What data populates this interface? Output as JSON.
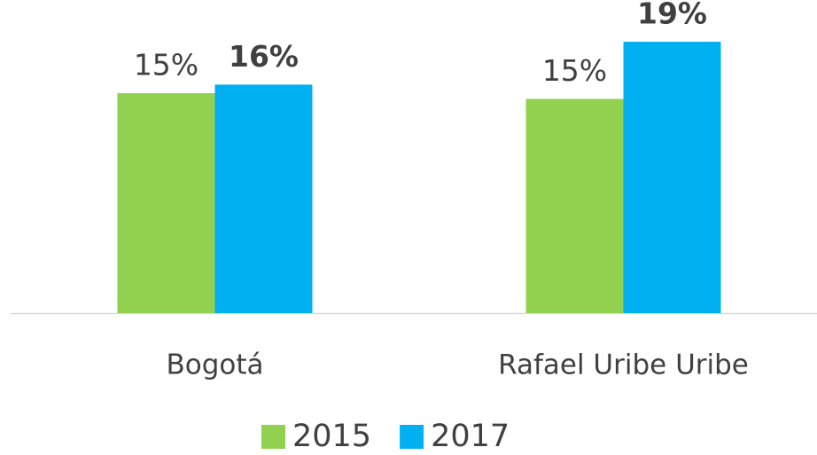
{
  "chart_data": {
    "type": "bar",
    "categories": [
      "Bogotá",
      "Rafael Uribe Uribe"
    ],
    "series": [
      {
        "name": "2015",
        "color": "#92d050",
        "values": [
          15.4,
          15.0
        ],
        "value_labels": [
          "15%",
          "15%"
        ]
      },
      {
        "name": "2017",
        "color": "#00b0f0",
        "values": [
          16.0,
          19.0
        ],
        "value_labels": [
          "16%",
          "19%"
        ]
      }
    ],
    "legend": "bottom"
  }
}
